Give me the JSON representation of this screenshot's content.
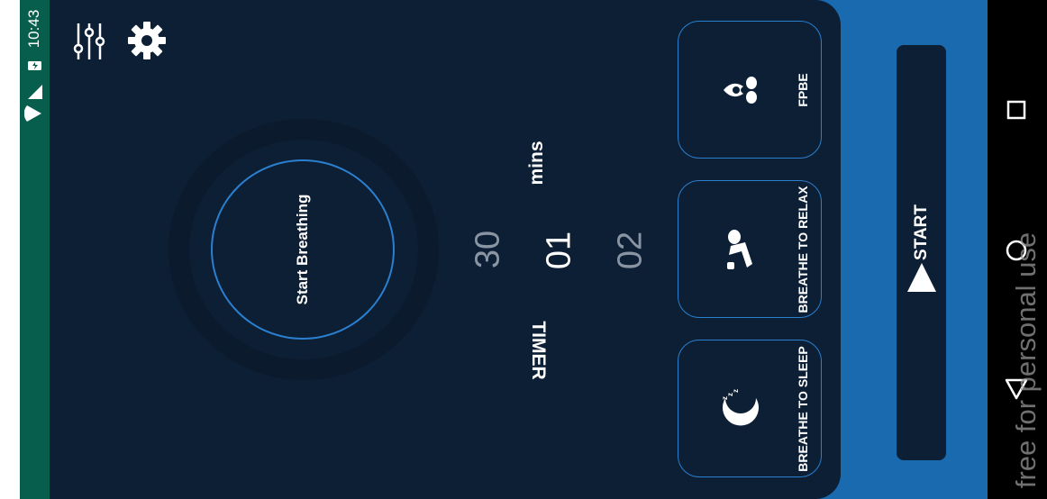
{
  "status_bar": {
    "time": "10:43"
  },
  "toolbar": {
    "filter_icon": "sliders-icon",
    "settings_icon": "gear-icon"
  },
  "breathing": {
    "label": "Start Breathing"
  },
  "timer": {
    "label": "TIMER",
    "unit": "mins",
    "values": [
      "30",
      "01",
      "02"
    ]
  },
  "modes": [
    {
      "label": "FPBE",
      "icon": "meditation-icon"
    },
    {
      "label": "BREATHE TO RELAX",
      "icon": "relax-pose-icon"
    },
    {
      "label": "BREATHE TO SLEEP",
      "icon": "moon-sleep-icon"
    }
  ],
  "start": {
    "label": "START"
  },
  "watermark": "free for personal use",
  "nav": {
    "back": "back-icon",
    "home": "home-icon",
    "recents": "recents-icon"
  },
  "colors": {
    "background": "#0d1f35",
    "accent": "#1a6ab0",
    "status": "#075e4d"
  }
}
